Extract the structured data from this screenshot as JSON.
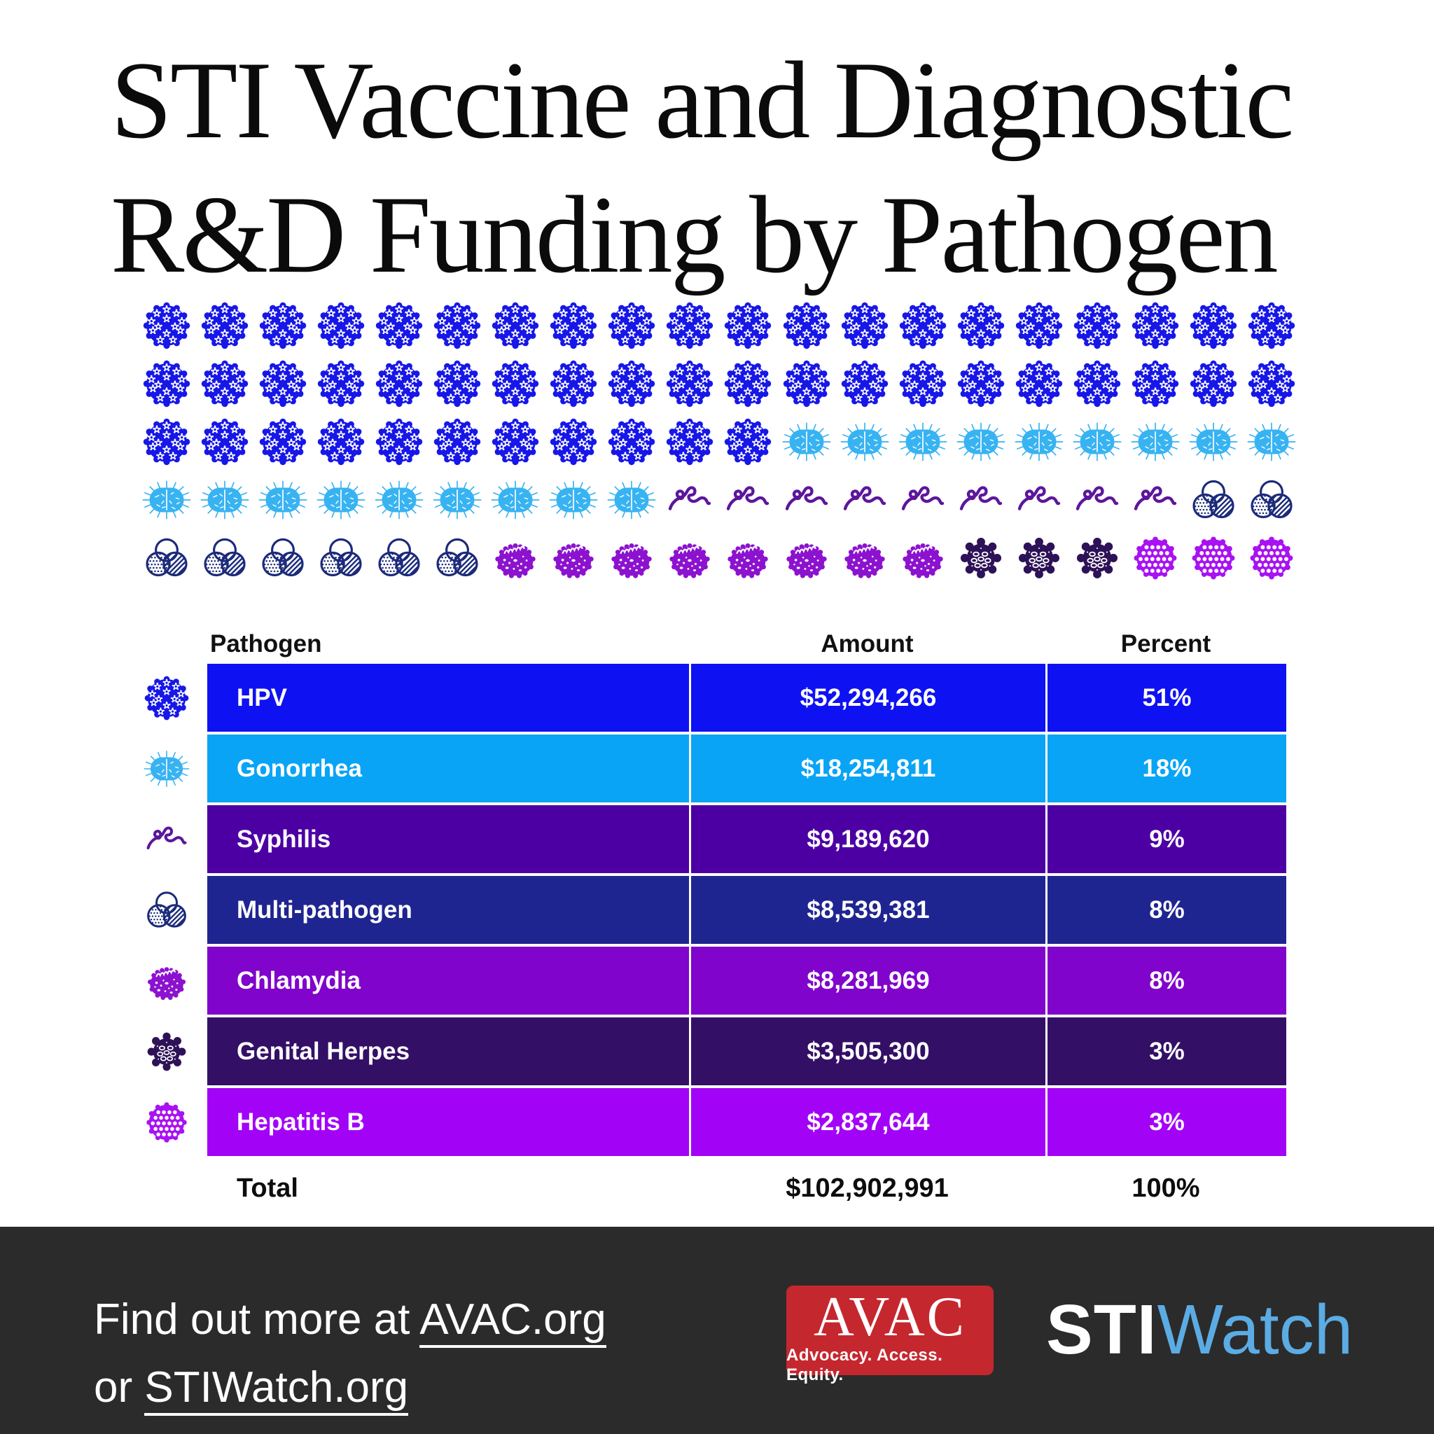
{
  "title": {
    "line1": "STI Vaccine and Diagnostic",
    "line2": "R&D Funding by Pathogen"
  },
  "chart_data": {
    "type": "pictogram",
    "title": "STI Vaccine and Diagnostic R&D Funding by Pathogen",
    "icons_per_row": 20,
    "total_icons": 100,
    "unit_per_icon_percent": 1,
    "columns": [
      "Pathogen",
      "Amount",
      "Percent"
    ],
    "rows": [
      {
        "pathogen": "HPV",
        "amount": "$52,294,266",
        "percent": "51%",
        "units": 51,
        "icon": "hpv-virus",
        "color": "#0e12f2"
      },
      {
        "pathogen": "Gonorrhea",
        "amount": "$18,254,811",
        "percent": "18%",
        "units": 18,
        "icon": "gonorrhea-bacterium",
        "color": "#09a4f5"
      },
      {
        "pathogen": "Syphilis",
        "amount": "$9,189,620",
        "percent": "9%",
        "units": 9,
        "icon": "syphilis-spirochete",
        "color": "#4c00a4"
      },
      {
        "pathogen": "Multi-pathogen",
        "amount": "$8,539,381",
        "percent": "8%",
        "units": 8,
        "icon": "multi-pathogen",
        "color": "#1f2590"
      },
      {
        "pathogen": "Chlamydia",
        "amount": "$8,281,969",
        "percent": "8%",
        "units": 8,
        "icon": "chlamydia-bacterium",
        "color": "#8004cb"
      },
      {
        "pathogen": "Genital Herpes",
        "amount": "$3,505,300",
        "percent": "3%",
        "units": 3,
        "icon": "herpes-virus",
        "color": "#331066"
      },
      {
        "pathogen": "Hepatitis B",
        "amount": "$2,837,644",
        "percent": "3%",
        "units": 3,
        "icon": "hepatitis-b-virus",
        "color": "#a203f6"
      }
    ],
    "total": {
      "label": "Total",
      "amount": "$102,902,991",
      "percent": "100%"
    }
  },
  "footer": {
    "line1_prefix": "Find out more at ",
    "line1_link": "AVAC.org",
    "line2_prefix": "or ",
    "line2_link": "STIWatch.org",
    "background": "#2b2b2b",
    "avac": {
      "wordmark": "AVAC",
      "tagline": "Advocacy. Access. Equity.",
      "bg": "#c5272f"
    },
    "stiwatch": {
      "part1": "STI",
      "part2": "Watch",
      "part2_color": "#5bace4"
    }
  }
}
